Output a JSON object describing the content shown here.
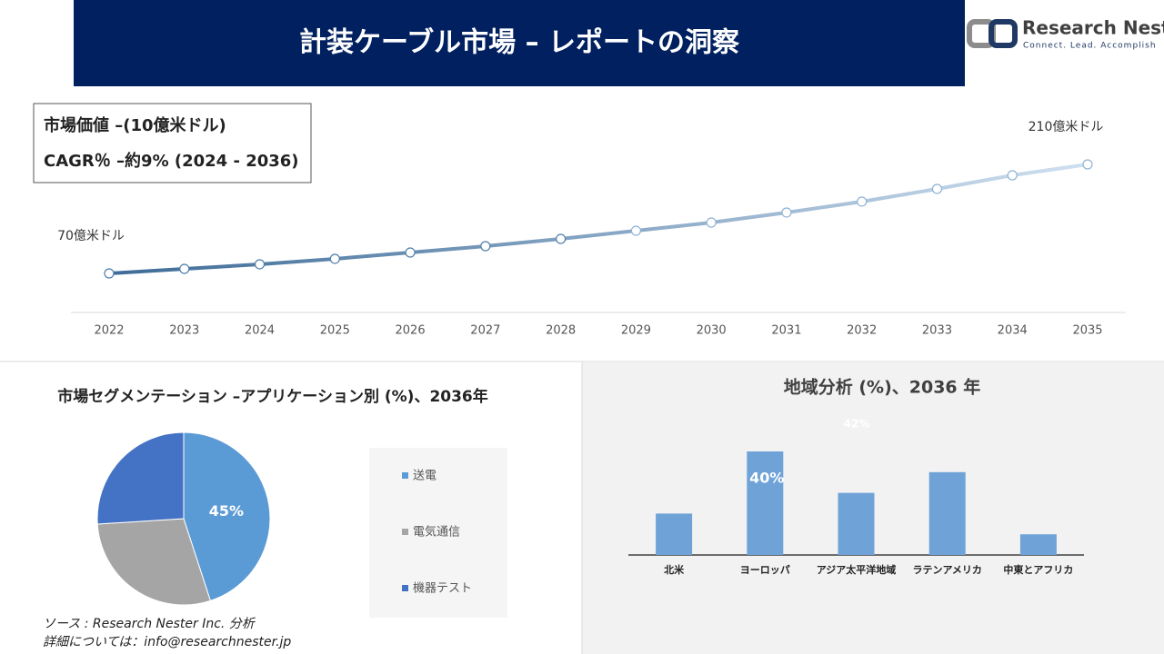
{
  "header": {
    "title": "計装ケーブル市場 – レポートの洞察"
  },
  "logo": {
    "name": "Research Nester",
    "tagline": "Connect. Lead. Accomplish"
  },
  "chart_data": [
    {
      "type": "line",
      "info": [
        "市場価値 –(10億米ドル)",
        "CAGR％ –約9% (2024 - 2036)"
      ],
      "categories": [
        "2022",
        "2023",
        "2024",
        "2025",
        "2026",
        "2027",
        "2028",
        "2029",
        "2030",
        "2031",
        "2032",
        "2033",
        "2034",
        "2035"
      ],
      "values": [
        7,
        7.58,
        8.17,
        8.87,
        9.68,
        10.5,
        11.43,
        12.48,
        13.53,
        14.82,
        16.22,
        17.85,
        19.6,
        21
      ],
      "value_labels": [
        "70億米ドル",
        null,
        null,
        null,
        null,
        null,
        null,
        null,
        null,
        null,
        null,
        null,
        null,
        "210億米ドル"
      ],
      "colors": [
        "#3d6b97",
        "#cfe0f0"
      ]
    },
    {
      "type": "pie",
      "title": "市場セグメンテーション –アプリケーション別 (%)、2036年",
      "categories": [
        "送電",
        "電気通信",
        "機器テスト"
      ],
      "values": [
        45,
        29,
        26
      ],
      "value_labels": [
        "45%",
        null,
        null
      ],
      "colors": [
        "#5b9bd5",
        "#a5a5a5",
        "#4472c4"
      ]
    },
    {
      "type": "bar",
      "title": "地域分析 (%)、2036 年",
      "categories": [
        "北米",
        "ヨーロッパ",
        "アジア太平洋地域",
        "ラテンアメリカ",
        "中東とアフリカ"
      ],
      "values": [
        16,
        40,
        24,
        32,
        8
      ],
      "value_labels": [
        null,
        "40%",
        null,
        null,
        null
      ],
      "annotation": "42%",
      "color": "#6fa3d8"
    }
  ],
  "footer": {
    "source": "ソース : Research Nester Inc. 分析",
    "contact": "詳細については：info@researchnester.jp"
  }
}
